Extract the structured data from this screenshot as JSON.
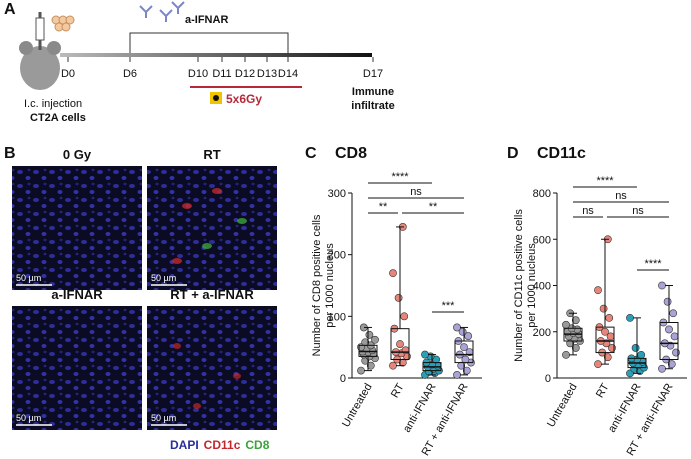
{
  "panel_a": {
    "letter": "A",
    "drug": "a-IFNAR",
    "days": [
      "D0",
      "D6",
      "D10",
      "D11",
      "D12",
      "D13",
      "D14",
      "D17"
    ],
    "radiation": "5x6Gy",
    "injection": [
      "I.c. injection",
      "CT2A cells"
    ],
    "endpoint": [
      "Immune",
      "infiltrate"
    ]
  },
  "panel_b": {
    "letter": "B",
    "images": [
      {
        "title": "0 Gy",
        "scale": "50 µm"
      },
      {
        "title": "RT",
        "scale": "50 µm"
      },
      {
        "title": "a-IFNAR",
        "scale": "50 µm"
      },
      {
        "title": "RT + a-IFNAR",
        "scale": "50 µm"
      }
    ],
    "legend": [
      {
        "text": "DAPI",
        "color": "#2b2b9e"
      },
      {
        "text": "CD11c",
        "color": "#c0282c"
      },
      {
        "text": "CD8",
        "color": "#3aa33a"
      }
    ]
  },
  "chart_data": [
    {
      "type": "box",
      "letter": "C",
      "title": "CD8",
      "ylabel": [
        "Number of CD8 positive cells",
        "per 1000 nucleus"
      ],
      "categories": [
        "Untreated",
        "RT",
        "anti-IFNAR",
        "RT + anti-IFNAR"
      ],
      "ylim": [
        0,
        300
      ],
      "yticks": [
        0,
        100,
        200,
        300
      ],
      "boxes": [
        {
          "color": "#9a9a9a",
          "min": 12,
          "q1": 35,
          "median": 43,
          "q3": 53,
          "max": 82,
          "points": [
            12,
            20,
            28,
            32,
            35,
            38,
            40,
            42,
            43,
            45,
            48,
            50,
            53,
            58,
            62,
            70,
            82
          ]
        },
        {
          "color": "#e8857a",
          "min": 20,
          "q1": 30,
          "median": 42,
          "q3": 80,
          "max": 245,
          "points": [
            20,
            25,
            30,
            35,
            40,
            42,
            45,
            55,
            80,
            100,
            130,
            170,
            245
          ]
        },
        {
          "color": "#2aa0b8",
          "min": 5,
          "q1": 12,
          "median": 18,
          "q3": 25,
          "max": 38,
          "points": [
            5,
            8,
            10,
            12,
            15,
            18,
            20,
            22,
            25,
            30,
            35,
            38
          ]
        },
        {
          "color": "#a9a3d6",
          "min": 5,
          "q1": 25,
          "median": 38,
          "q3": 60,
          "max": 82,
          "points": [
            5,
            12,
            20,
            25,
            30,
            38,
            42,
            50,
            60,
            68,
            75,
            82
          ]
        }
      ],
      "significance": [
        {
          "pair": [
            0,
            2
          ],
          "label": "****"
        },
        {
          "pair": [
            0,
            3
          ],
          "label": "ns"
        },
        {
          "pair": [
            0,
            1
          ],
          "label": "**"
        },
        {
          "pair": [
            1,
            3
          ],
          "label": "**"
        },
        {
          "pair": [
            2,
            3
          ],
          "label": "***"
        }
      ]
    },
    {
      "type": "box",
      "letter": "D",
      "title": "CD11c",
      "ylabel": [
        "Number of CD11c positive cells",
        "per 1000 nucleus"
      ],
      "categories": [
        "Untreated",
        "RT",
        "anti-IFNAR",
        "RT + anti-IFNAR"
      ],
      "ylim": [
        0,
        800
      ],
      "yticks": [
        0,
        200,
        400,
        600,
        800
      ],
      "boxes": [
        {
          "color": "#9a9a9a",
          "min": 100,
          "q1": 160,
          "median": 190,
          "q3": 215,
          "max": 280,
          "points": [
            100,
            130,
            150,
            160,
            170,
            180,
            190,
            195,
            200,
            210,
            215,
            230,
            250,
            280
          ]
        },
        {
          "color": "#e8857a",
          "min": 60,
          "q1": 110,
          "median": 160,
          "q3": 220,
          "max": 600,
          "points": [
            60,
            90,
            110,
            130,
            150,
            160,
            180,
            200,
            220,
            260,
            300,
            380,
            600
          ]
        },
        {
          "color": "#2aa0b8",
          "min": 20,
          "q1": 45,
          "median": 65,
          "q3": 85,
          "max": 260,
          "points": [
            20,
            30,
            40,
            45,
            55,
            65,
            70,
            80,
            85,
            100,
            130,
            260
          ]
        },
        {
          "color": "#a9a3d6",
          "min": 40,
          "q1": 80,
          "median": 150,
          "q3": 240,
          "max": 400,
          "points": [
            40,
            60,
            80,
            110,
            140,
            150,
            180,
            210,
            240,
            280,
            330,
            400
          ]
        }
      ],
      "significance": [
        {
          "pair": [
            0,
            2
          ],
          "label": "****"
        },
        {
          "pair": [
            0,
            3
          ],
          "label": "ns"
        },
        {
          "pair": [
            0,
            1
          ],
          "label": "ns"
        },
        {
          "pair": [
            1,
            3
          ],
          "label": "ns"
        },
        {
          "pair": [
            2,
            3
          ],
          "label": "****"
        }
      ]
    }
  ]
}
